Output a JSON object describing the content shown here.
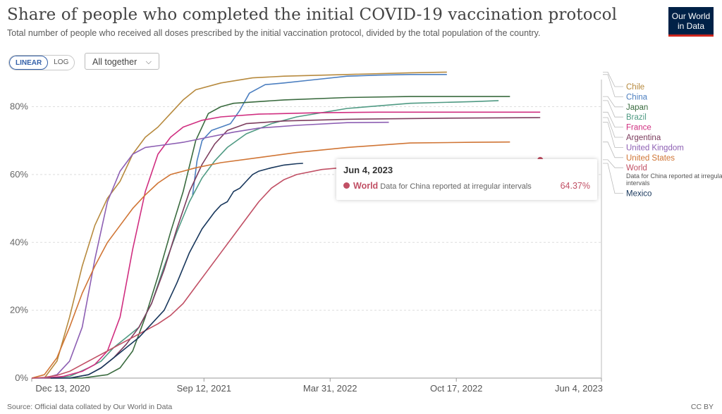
{
  "header": {
    "title": "Share of people who completed the initial COVID-19 vaccination protocol",
    "subtitle": "Total number of people who received all doses prescribed by the initial vaccination protocol, divided by the total population of the country.",
    "logo_line1": "Our World",
    "logo_line2": "in Data"
  },
  "controls": {
    "linear_label": "LINEAR",
    "log_label": "LOG",
    "dropdown_label": "All together",
    "chevron": "⌵"
  },
  "tooltip": {
    "date": "Jun 4, 2023",
    "entity": "World",
    "note": "Data for China reported at irregular intervals",
    "value": "64.37%"
  },
  "footer": {
    "source": "Source: Official data collated by Our World in Data",
    "license": "CC BY"
  },
  "chart_data": {
    "type": "line",
    "title": "Share of people who completed the initial COVID-19 vaccination protocol",
    "xlabel": "",
    "ylabel": "",
    "x_start": "2020-12-13",
    "x_end": "2023-06-04",
    "x_ticks": [
      {
        "label": "Dec 13, 2020",
        "date": "2020-12-13"
      },
      {
        "label": "Sep 12, 2021",
        "date": "2021-09-12"
      },
      {
        "label": "Mar 31, 2022",
        "date": "2022-03-31"
      },
      {
        "label": "Oct 17, 2022",
        "date": "2022-10-17"
      },
      {
        "label": "Jun 4, 2023",
        "date": "2023-06-04"
      }
    ],
    "ylim": [
      0,
      88
    ],
    "y_ticks": [
      {
        "label": "0%",
        "value": 0
      },
      {
        "label": "20%",
        "value": 20
      },
      {
        "label": "40%",
        "value": 40
      },
      {
        "label": "60%",
        "value": 60
      },
      {
        "label": "80%",
        "value": 80
      }
    ],
    "legend_position": "right",
    "series": [
      {
        "name": "Chile",
        "color": "#b78a3e",
        "label_value": 90.8,
        "points": [
          [
            0,
            0
          ],
          [
            20,
            0
          ],
          [
            40,
            5
          ],
          [
            60,
            18
          ],
          [
            80,
            33
          ],
          [
            100,
            45
          ],
          [
            120,
            53
          ],
          [
            140,
            58
          ],
          [
            160,
            66
          ],
          [
            180,
            71
          ],
          [
            200,
            74
          ],
          [
            220,
            78
          ],
          [
            240,
            82
          ],
          [
            260,
            85
          ],
          [
            300,
            87
          ],
          [
            350,
            88.5
          ],
          [
            400,
            89
          ],
          [
            500,
            89.5
          ],
          [
            600,
            90
          ],
          [
            658,
            90.2
          ]
        ]
      },
      {
        "name": "China",
        "color": "#4c7fc0",
        "label_value": 89.3,
        "points": [
          [
            255,
            54
          ],
          [
            262,
            64
          ],
          [
            270,
            70
          ],
          [
            285,
            73
          ],
          [
            300,
            74
          ],
          [
            315,
            75
          ],
          [
            330,
            79
          ],
          [
            345,
            84
          ],
          [
            370,
            86.5
          ],
          [
            400,
            87
          ],
          [
            450,
            88
          ],
          [
            500,
            89
          ],
          [
            550,
            89.3
          ],
          [
            600,
            89.5
          ],
          [
            658,
            89.5
          ]
        ]
      },
      {
        "name": "Japan",
        "color": "#3a6b3f",
        "label_value": 83.0,
        "points": [
          [
            60,
            0
          ],
          [
            80,
            0
          ],
          [
            100,
            0.5
          ],
          [
            120,
            1
          ],
          [
            140,
            3
          ],
          [
            160,
            8
          ],
          [
            180,
            18
          ],
          [
            200,
            30
          ],
          [
            220,
            43
          ],
          [
            240,
            55
          ],
          [
            260,
            70
          ],
          [
            280,
            78
          ],
          [
            300,
            80
          ],
          [
            320,
            81
          ],
          [
            360,
            81.5
          ],
          [
            400,
            82
          ],
          [
            500,
            82.7
          ],
          [
            600,
            83
          ],
          [
            758,
            83
          ]
        ]
      },
      {
        "name": "Brazil",
        "color": "#4f9a83",
        "label_value": 81.5,
        "points": [
          [
            30,
            0
          ],
          [
            60,
            0.5
          ],
          [
            90,
            3
          ],
          [
            110,
            5
          ],
          [
            130,
            9
          ],
          [
            150,
            12
          ],
          [
            170,
            15
          ],
          [
            190,
            22
          ],
          [
            210,
            33
          ],
          [
            230,
            43
          ],
          [
            250,
            52
          ],
          [
            270,
            59
          ],
          [
            290,
            64
          ],
          [
            310,
            68
          ],
          [
            340,
            72
          ],
          [
            380,
            75
          ],
          [
            420,
            77
          ],
          [
            500,
            79.5
          ],
          [
            600,
            81
          ],
          [
            700,
            81.5
          ],
          [
            740,
            81.8
          ]
        ]
      },
      {
        "name": "France",
        "color": "#d02e80",
        "label_value": 78.4,
        "points": [
          [
            20,
            0
          ],
          [
            50,
            0.5
          ],
          [
            80,
            2
          ],
          [
            100,
            4
          ],
          [
            120,
            8
          ],
          [
            140,
            18
          ],
          [
            160,
            38
          ],
          [
            180,
            55
          ],
          [
            200,
            66
          ],
          [
            220,
            71
          ],
          [
            240,
            74
          ],
          [
            270,
            76
          ],
          [
            300,
            77
          ],
          [
            360,
            77.8
          ],
          [
            450,
            78.2
          ],
          [
            550,
            78.4
          ],
          [
            680,
            78.4
          ],
          [
            806,
            78.4
          ]
        ]
      },
      {
        "name": "Argentina",
        "color": "#7c3d5e",
        "label_value": 76.8,
        "points": [
          [
            20,
            0
          ],
          [
            60,
            0
          ],
          [
            90,
            1
          ],
          [
            110,
            3
          ],
          [
            130,
            6
          ],
          [
            150,
            10
          ],
          [
            170,
            15
          ],
          [
            190,
            22
          ],
          [
            210,
            32
          ],
          [
            230,
            44
          ],
          [
            250,
            55
          ],
          [
            270,
            63
          ],
          [
            290,
            69
          ],
          [
            310,
            73
          ],
          [
            340,
            75
          ],
          [
            400,
            75.8
          ],
          [
            500,
            76.3
          ],
          [
            650,
            76.6
          ],
          [
            806,
            76.8
          ]
        ]
      },
      {
        "name": "United Kingdom",
        "color": "#8d5fb3",
        "label_value": 76.0,
        "points": [
          [
            0,
            0
          ],
          [
            20,
            0
          ],
          [
            40,
            1
          ],
          [
            60,
            5
          ],
          [
            80,
            15
          ],
          [
            100,
            35
          ],
          [
            120,
            52
          ],
          [
            140,
            61
          ],
          [
            160,
            66
          ],
          [
            180,
            68
          ],
          [
            200,
            68.5
          ],
          [
            240,
            69.5
          ],
          [
            280,
            71
          ],
          [
            320,
            72.5
          ],
          [
            360,
            73.7
          ],
          [
            420,
            74.5
          ],
          [
            500,
            75.3
          ],
          [
            566,
            75.4
          ]
        ]
      },
      {
        "name": "United States",
        "color": "#d07535",
        "label_value": 69.7,
        "points": [
          [
            0,
            0
          ],
          [
            20,
            1
          ],
          [
            40,
            6
          ],
          [
            60,
            15
          ],
          [
            80,
            25
          ],
          [
            100,
            33
          ],
          [
            120,
            40
          ],
          [
            140,
            45
          ],
          [
            160,
            50
          ],
          [
            180,
            54
          ],
          [
            200,
            57.5
          ],
          [
            220,
            60
          ],
          [
            260,
            62
          ],
          [
            300,
            63.5
          ],
          [
            360,
            65
          ],
          [
            420,
            66.5
          ],
          [
            500,
            68
          ],
          [
            600,
            69.3
          ],
          [
            700,
            69.5
          ],
          [
            758,
            69.6
          ]
        ]
      },
      {
        "name": "World",
        "color": "#c15065",
        "label_value": 64.37,
        "points": [
          [
            0,
            0
          ],
          [
            20,
            0.2
          ],
          [
            40,
            0.8
          ],
          [
            60,
            2
          ],
          [
            80,
            4
          ],
          [
            100,
            6
          ],
          [
            120,
            8
          ],
          [
            140,
            10
          ],
          [
            160,
            12
          ],
          [
            180,
            14
          ],
          [
            200,
            16
          ],
          [
            220,
            18.5
          ],
          [
            240,
            22
          ],
          [
            260,
            27
          ],
          [
            280,
            32
          ],
          [
            300,
            37
          ],
          [
            320,
            42
          ],
          [
            340,
            47
          ],
          [
            360,
            52
          ],
          [
            380,
            56
          ],
          [
            400,
            58.5
          ],
          [
            420,
            60
          ],
          [
            460,
            61.5
          ],
          [
            520,
            62.5
          ],
          [
            600,
            63.3
          ],
          [
            700,
            63.9
          ],
          [
            806,
            64.37
          ]
        ]
      },
      {
        "name": "Mexico",
        "color": "#18375c",
        "label_value": 63.3,
        "points": [
          [
            30,
            0
          ],
          [
            60,
            0
          ],
          [
            90,
            1
          ],
          [
            110,
            3
          ],
          [
            130,
            6
          ],
          [
            150,
            9
          ],
          [
            170,
            12
          ],
          [
            190,
            16
          ],
          [
            210,
            20
          ],
          [
            230,
            28
          ],
          [
            250,
            37
          ],
          [
            270,
            44
          ],
          [
            290,
            49
          ],
          [
            300,
            51
          ],
          [
            310,
            52
          ],
          [
            320,
            55
          ],
          [
            330,
            56
          ],
          [
            340,
            58
          ],
          [
            350,
            60
          ],
          [
            360,
            61
          ],
          [
            380,
            62
          ],
          [
            400,
            62.8
          ],
          [
            420,
            63.2
          ],
          [
            430,
            63.3
          ]
        ]
      }
    ],
    "legend_note": "Data for China reported at irregular intervals"
  }
}
